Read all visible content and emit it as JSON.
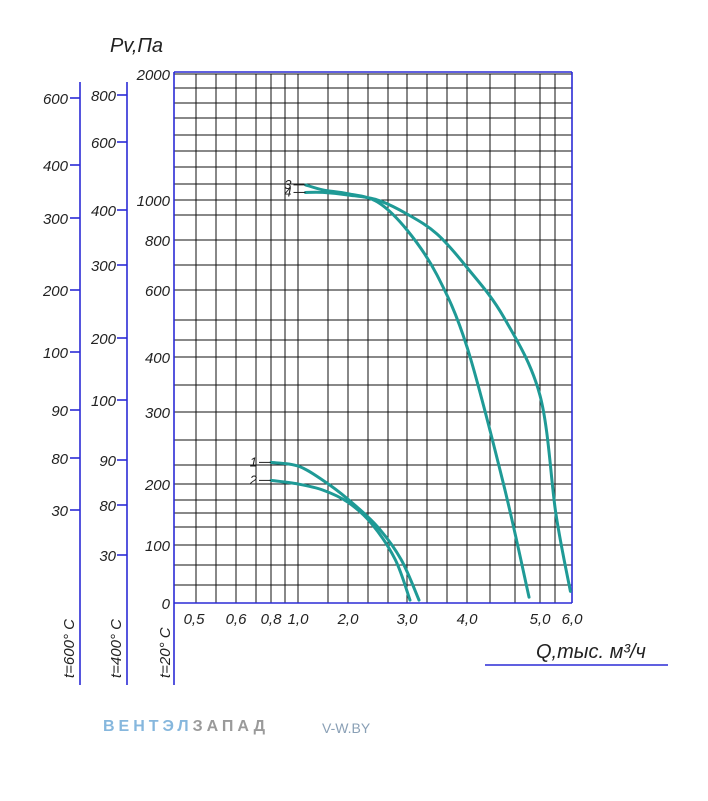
{
  "chart_data": {
    "type": "line",
    "ylabel": "Pv,Па",
    "xlabel": "Q,тыс. м³/ч",
    "x_ticks": [
      "0,5",
      "0,6",
      "0,8",
      "1,0",
      "2,0",
      "3,0",
      "4,0",
      "5,0",
      "6,0"
    ],
    "y_ticks_20": [
      "0",
      "100",
      "200",
      "300",
      "400",
      "600",
      "800",
      "1000",
      "2000"
    ],
    "y_ticks_400": [
      "30",
      "80",
      "90",
      "100",
      "200",
      "300",
      "400",
      "600",
      "800"
    ],
    "y_ticks_600": [
      "30",
      "80",
      "90",
      "100",
      "200",
      "300",
      "400",
      "600"
    ],
    "scale_labels": [
      "t=20° C",
      "t=400° C",
      "t=600° C"
    ],
    "series": [
      {
        "name": "1",
        "x": [
          0.8,
          1.0,
          1.5,
          2.0,
          2.5,
          2.9,
          3.2
        ],
        "y": [
          230,
          225,
          205,
          175,
          130,
          75,
          5
        ]
      },
      {
        "name": "2",
        "x": [
          0.8,
          1.0,
          1.5,
          2.0,
          2.4,
          2.8,
          3.05
        ],
        "y": [
          205,
          200,
          190,
          170,
          135,
          75,
          5
        ]
      },
      {
        "name": "3",
        "x": [
          1.15,
          1.5,
          2.0,
          2.5,
          3.0,
          3.5,
          4.0,
          4.5,
          4.85
        ],
        "y": [
          1120,
          1080,
          1050,
          990,
          850,
          660,
          430,
          200,
          10
        ]
      },
      {
        "name": "4",
        "x": [
          1.15,
          1.5,
          2.0,
          2.5,
          3.0,
          3.5,
          4.0,
          4.5,
          5.0,
          5.5,
          5.95
        ],
        "y": [
          1060,
          1060,
          1040,
          1000,
          930,
          830,
          690,
          520,
          330,
          150,
          20
        ]
      }
    ],
    "colors": {
      "curve": "#1f9a96",
      "axis": "#2b2bd6"
    }
  },
  "footer": {
    "brand_a": "ВЕНТЭЛ",
    "brand_b": "ЗАПАД",
    "site": "V-W.BY"
  }
}
